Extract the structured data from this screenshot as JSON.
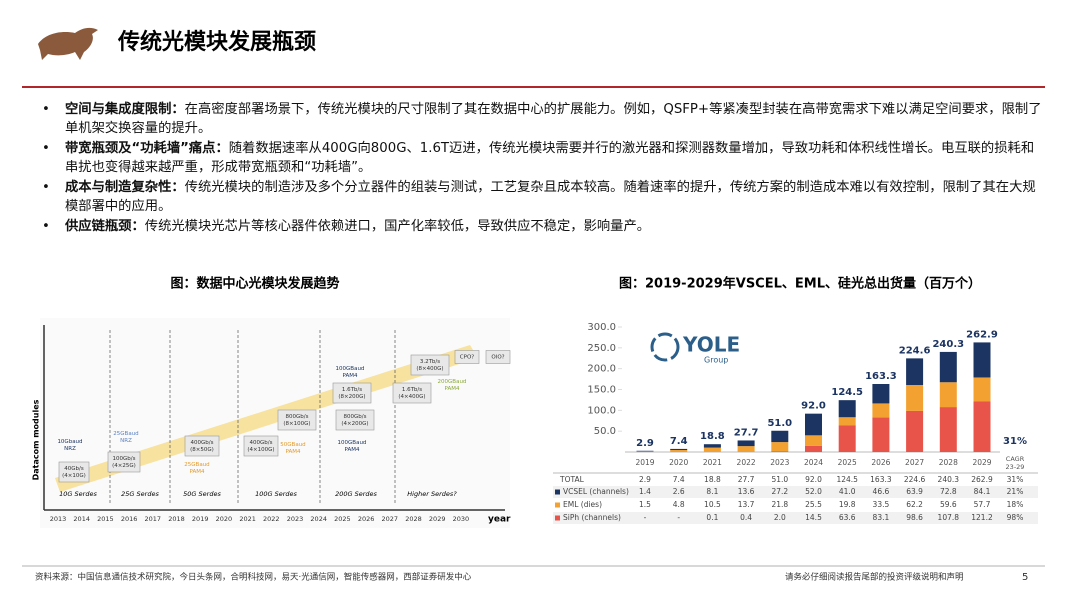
{
  "header": {
    "title": "传统光模块发展瓶颈"
  },
  "bullets": [
    {
      "lead": "空间与集成度限制：",
      "text": "在高密度部署场景下，传统光模块的尺寸限制了其在数据中心的扩展能力。例如，QSFP+等紧凑型封装在高带宽需求下难以满足空间要求，限制了单机架交换容量的提升。"
    },
    {
      "lead": "带宽瓶颈及“功耗墙”痛点：",
      "text": "随着数据速率从400G向800G、1.6T迈进，传统光模块需要并行的激光器和探测器数量增加，导致功耗和体积线性增长。电互联的损耗和串扰也变得越来越严重，形成带宽瓶颈和“功耗墙”。"
    },
    {
      "lead": "成本与制造复杂性：",
      "text": "传统光模块的制造涉及多个分立器件的组装与测试，工艺复杂且成本较高。随着速率的提升，传统方案的制造成本难以有效控制，限制了其在大规模部署中的应用。"
    },
    {
      "lead": "供应链瓶颈：",
      "text": "传统光模块光芯片等核心器件依赖进口，国产化率较低，导致供应不稳定，影响量产。"
    }
  ],
  "captions": [
    "图：数据中心光模块发展趋势",
    "图：2019-2029年VSCEL、EML、硅光总出货量（百万个）"
  ],
  "trend_figure": {
    "y_label": "Datacom modules",
    "x_label": "year",
    "years": [
      2013,
      2014,
      2015,
      2016,
      2017,
      2018,
      2019,
      2020,
      2021,
      2022,
      2023,
      2024,
      2025,
      2026,
      2027,
      2028,
      2029,
      2030
    ],
    "serdes": [
      "10G Serdes",
      "25G Serdes",
      "50G Serdes",
      "100G Serdes",
      "200G Serdes",
      "Higher Serdes?"
    ],
    "nodes": [
      {
        "lines": [
          "10Gbaud",
          "NRZ"
        ]
      },
      {
        "lines": [
          "40Gb/s",
          "(4×10G)"
        ]
      },
      {
        "lines": [
          "25GBaud",
          "NRZ"
        ]
      },
      {
        "lines": [
          "100Gb/s",
          "(4×25G)"
        ]
      },
      {
        "lines": [
          "400Gb/s",
          "(8×50G)"
        ]
      },
      {
        "lines": [
          "25GBaud",
          "PAM4"
        ]
      },
      {
        "lines": [
          "400Gb/s",
          "(4×100G)"
        ]
      },
      {
        "lines": [
          "50GBaud",
          "PAM4"
        ]
      },
      {
        "lines": [
          "800Gb/s",
          "(8×100G)"
        ]
      },
      {
        "lines": [
          "800Gb/s",
          "(4×200G)"
        ]
      },
      {
        "lines": [
          "100GBaud",
          "PAM4"
        ]
      },
      {
        "lines": [
          "100GBaud",
          "PAM4"
        ]
      },
      {
        "lines": [
          "1.6Tb/s",
          "(8×200G)"
        ]
      },
      {
        "lines": [
          "1.6Tb/s",
          "(4×400G)"
        ]
      },
      {
        "lines": [
          "200GBaud",
          "PAM4"
        ]
      },
      {
        "lines": [
          "3.2Tb/s",
          "(8×400G)"
        ]
      },
      {
        "lines": [
          "CPO?"
        ]
      },
      {
        "lines": [
          "OIO?"
        ]
      }
    ]
  },
  "chart_data": {
    "type": "stacked_bar",
    "logo": {
      "name": "YOLE",
      "sub": "Group"
    },
    "categories": [
      "2019",
      "2020",
      "2021",
      "2022",
      "2023",
      "2024",
      "2025",
      "2026",
      "2027",
      "2028",
      "2029"
    ],
    "ylim": [
      0,
      300
    ],
    "yticks": [
      {
        "value": 50,
        "label": "50.0"
      },
      {
        "value": 100,
        "label": "100.0"
      },
      {
        "value": 150,
        "label": "150.0"
      },
      {
        "value": 200,
        "label": "200.0"
      },
      {
        "value": 250,
        "label": "250.0"
      },
      {
        "value": 300,
        "label": "300.0"
      }
    ],
    "total_name": "TOTAL",
    "totals": [
      2.9,
      7.4,
      18.8,
      27.7,
      51.0,
      92.0,
      124.5,
      163.3,
      224.6,
      240.3,
      262.9
    ],
    "total_labels": [
      "2.9",
      "7.4",
      "18.8",
      "27.7",
      "51.0",
      "92.0",
      "124.5",
      "163.3",
      "224.6",
      "240.3",
      "262.9"
    ],
    "total_cagr": "31%",
    "cagr_annotation": "31%",
    "cagr_header": [
      "CAGR",
      "23-29"
    ],
    "series": [
      {
        "name": "VCSEL (channels)",
        "color": "#1c3462",
        "values": [
          1.4,
          2.6,
          8.1,
          13.6,
          27.2,
          52.0,
          41.0,
          46.6,
          63.9,
          72.8,
          84.1
        ],
        "value_labels": [
          "1.4",
          "2.6",
          "8.1",
          "13.6",
          "27.2",
          "52.0",
          "41.0",
          "46.6",
          "63.9",
          "72.8",
          "84.1"
        ],
        "cagr": "21%"
      },
      {
        "name": "EML (dies)",
        "color": "#f3a232",
        "values": [
          1.5,
          4.8,
          10.5,
          13.7,
          21.8,
          25.5,
          19.8,
          33.5,
          62.2,
          59.6,
          57.7
        ],
        "value_labels": [
          "1.5",
          "4.8",
          "10.5",
          "13.7",
          "21.8",
          "25.5",
          "19.8",
          "33.5",
          "62.2",
          "59.6",
          "57.7"
        ],
        "cagr": "18%"
      },
      {
        "name": "SiPh (channels)",
        "color": "#e8544a",
        "values": [
          null,
          null,
          0.1,
          0.4,
          2.0,
          14.5,
          63.6,
          83.1,
          98.6,
          107.8,
          121.2
        ],
        "value_labels": [
          "-",
          "-",
          "0.1",
          "0.4",
          "2.0",
          "14.5",
          "63.6",
          "83.1",
          "98.6",
          "107.8",
          "121.2"
        ],
        "cagr": "98%"
      }
    ]
  },
  "footer": {
    "source": "资料来源：中国信息通信技术研究院，今日头条网，合明科技网，易天·光通信网，智能传感器网，西部证券研发中心",
    "disclaimer": "请务必仔细阅读报告尾部的投资评级说明和声明",
    "page": "5"
  }
}
